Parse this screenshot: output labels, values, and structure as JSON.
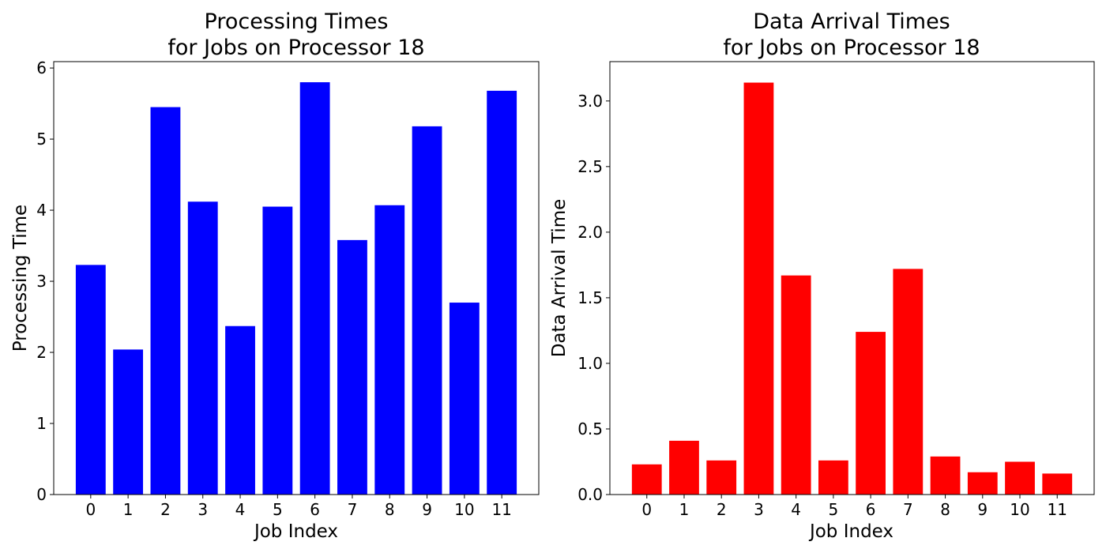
{
  "chart_data": [
    {
      "type": "bar",
      "title": [
        "Processing Times",
        "for Jobs on Processor 18"
      ],
      "xlabel": "Job Index",
      "ylabel": "Processing Time",
      "categories": [
        "0",
        "1",
        "2",
        "3",
        "4",
        "5",
        "6",
        "7",
        "8",
        "9",
        "10",
        "11"
      ],
      "values": [
        3.23,
        2.04,
        5.45,
        4.12,
        2.37,
        4.05,
        5.8,
        3.58,
        4.07,
        5.18,
        2.7,
        5.68
      ],
      "ylim": [
        0,
        6.09
      ],
      "yticks": [
        0,
        1,
        2,
        3,
        4,
        5,
        6
      ],
      "ytick_labels": [
        "0",
        "1",
        "2",
        "3",
        "4",
        "5",
        "6"
      ],
      "color": "#0000ff",
      "grid": false,
      "legend": "none"
    },
    {
      "type": "bar",
      "title": [
        "Data Arrival Times",
        "for Jobs on Processor 18"
      ],
      "xlabel": "Job Index",
      "ylabel": "Data Arrival Time",
      "categories": [
        "0",
        "1",
        "2",
        "3",
        "4",
        "5",
        "6",
        "7",
        "8",
        "9",
        "10",
        "11"
      ],
      "values": [
        0.23,
        0.41,
        0.26,
        3.14,
        1.67,
        0.26,
        1.24,
        1.72,
        0.29,
        0.17,
        0.25,
        0.16
      ],
      "ylim": [
        0,
        3.3
      ],
      "yticks": [
        0.0,
        0.5,
        1.0,
        1.5,
        2.0,
        2.5,
        3.0
      ],
      "ytick_labels": [
        "0.0",
        "0.5",
        "1.0",
        "1.5",
        "2.0",
        "2.5",
        "3.0"
      ],
      "color": "#ff0000",
      "grid": false,
      "legend": "none"
    }
  ]
}
